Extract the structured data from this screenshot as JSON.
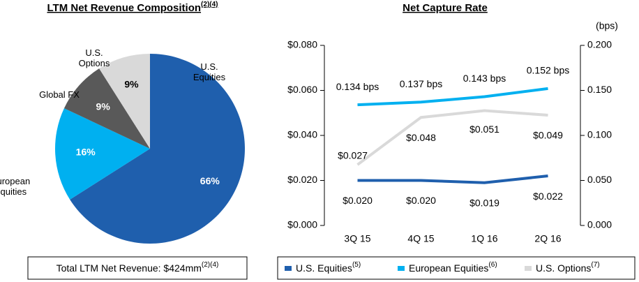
{
  "chart_data": [
    {
      "type": "pie",
      "title": "LTM Net Revenue Composition",
      "title_note": "(2)(4)",
      "categories": [
        "U.S. Equities",
        "European Equities",
        "Global FX",
        "U.S. Options"
      ],
      "values": [
        66,
        16,
        9,
        9
      ],
      "value_labels": [
        "66%",
        "16%",
        "9%",
        "9%"
      ],
      "colors": [
        "#1f5fad",
        "#00b0f0",
        "#595959",
        "#d9d9d9"
      ],
      "footnote": "Total LTM Net Revenue: $424mm",
      "footnote_note": "(2)(4)"
    },
    {
      "type": "line",
      "title": "Net Capture Rate",
      "y2_label": "(bps)",
      "categories": [
        "3Q 15",
        "4Q 15",
        "1Q 16",
        "2Q 16"
      ],
      "ylim": [
        0,
        0.08
      ],
      "yticks": [
        {
          "value": 0,
          "label": "$0.000"
        },
        {
          "value": 0.02,
          "label": "$0.020"
        },
        {
          "value": 0.04,
          "label": "$0.040"
        },
        {
          "value": 0.06,
          "label": "$0.060"
        },
        {
          "value": 0.08,
          "label": "$0.080"
        }
      ],
      "y2lim": [
        0,
        0.2
      ],
      "y2ticks": [
        {
          "value": 0,
          "label": "0.000"
        },
        {
          "value": 0.05,
          "label": "0.050"
        },
        {
          "value": 0.1,
          "label": "0.100"
        },
        {
          "value": 0.15,
          "label": "0.150"
        },
        {
          "value": 0.2,
          "label": "0.200"
        }
      ],
      "series": [
        {
          "name": "U.S. Equities",
          "note": "(5)",
          "color": "#1f5fad",
          "values": [
            0.02,
            0.02,
            0.019,
            0.022
          ],
          "value_labels": [
            "$0.020",
            "$0.020",
            "$0.019",
            "$0.022"
          ]
        },
        {
          "name": "European Equities",
          "note": "(6)",
          "color": "#00b0f0",
          "axis": "y2",
          "values": [
            0.134,
            0.137,
            0.143,
            0.152
          ],
          "value_labels": [
            "0.134 bps",
            "0.137 bps",
            "0.143 bps",
            "0.152 bps"
          ]
        },
        {
          "name": "U.S. Options",
          "note": "(7)",
          "color": "#d9d9d9",
          "values": [
            0.027,
            0.048,
            0.051,
            0.049
          ],
          "value_labels": [
            "$0.027",
            "$0.048",
            "$0.051",
            "$0.049"
          ]
        }
      ]
    }
  ]
}
